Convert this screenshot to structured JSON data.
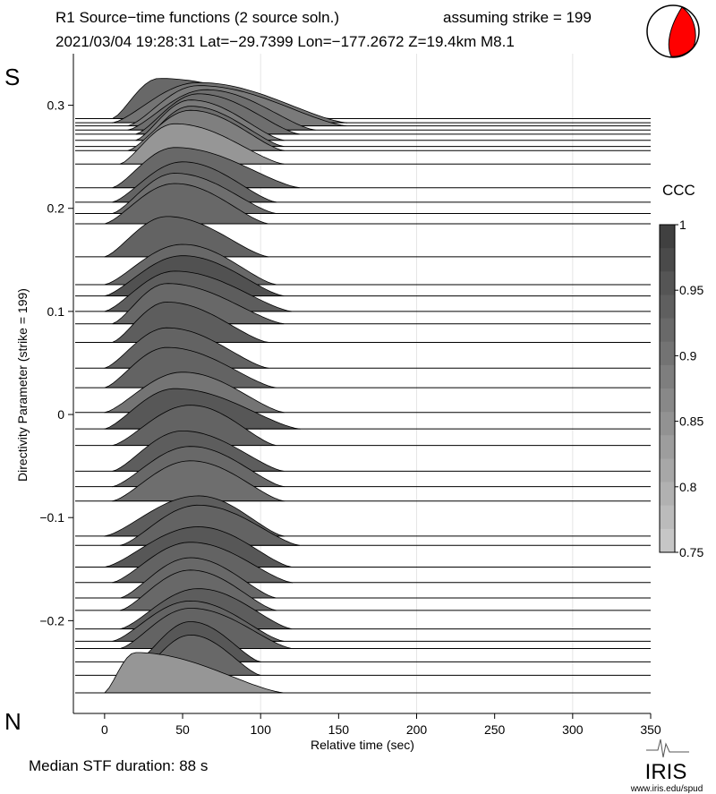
{
  "header": {
    "title": "R1 Source−time functions (2 source soln.)",
    "strike_note": "assuming strike = 199",
    "event_line": "2021/03/04 19:28:31  Lat=−29.7399 Lon=−177.2672  Z=19.4km  M8.1"
  },
  "edge_labels": {
    "top": "S",
    "bottom": "N"
  },
  "footer": {
    "median": "Median STF duration: 88 s",
    "logo_text": "IRIS",
    "logo_url": "www.iris.edu/spud"
  },
  "colors": {
    "trace_dark": "#404040",
    "trace_light": "#d0d0d0",
    "beachball": "#ff0000",
    "baseline": "#000000"
  },
  "chart_data": {
    "type": "area",
    "title": "",
    "xlabel": "Relative time (sec)",
    "ylabel": "Directivity Parameter (strike = 199)",
    "xlim": [
      -20,
      350
    ],
    "ylim": [
      -0.29,
      0.35
    ],
    "xticks": [
      0,
      50,
      100,
      150,
      200,
      250,
      300,
      350
    ],
    "yticks": [
      -0.2,
      -0.1,
      0,
      0.1,
      0.2,
      0.3
    ],
    "ytick_labels": [
      "−0.2",
      "−0.1",
      "0",
      "0.1",
      "0.2",
      "0.3"
    ],
    "vgrid": [
      100,
      200,
      300
    ],
    "colorbar": {
      "label": "CCC",
      "range": [
        0.75,
        1
      ],
      "ticks": [
        1,
        0.95,
        0.9,
        0.85,
        0.8,
        0.75
      ],
      "tick_labels": [
        "1",
        "0.95",
        "0.9",
        "0.85",
        "0.8",
        "0.75"
      ]
    },
    "traces": [
      {
        "d": 0.287,
        "start": 5,
        "end": 145,
        "peak": 35,
        "ccc": 0.93
      },
      {
        "d": 0.283,
        "start": 5,
        "end": 155,
        "peak": 60,
        "ccc": 0.91
      },
      {
        "d": 0.28,
        "start": 15,
        "end": 155,
        "peak": 60,
        "ccc": 0.9
      },
      {
        "d": 0.276,
        "start": 15,
        "end": 135,
        "peak": 65,
        "ccc": 0.92
      },
      {
        "d": 0.272,
        "start": 20,
        "end": 125,
        "peak": 60,
        "ccc": 0.92
      },
      {
        "d": 0.266,
        "start": 20,
        "end": 115,
        "peak": 55,
        "ccc": 0.9
      },
      {
        "d": 0.26,
        "start": 20,
        "end": 115,
        "peak": 55,
        "ccc": 0.92
      },
      {
        "d": 0.256,
        "start": 15,
        "end": 115,
        "peak": 55,
        "ccc": 0.89
      },
      {
        "d": 0.243,
        "start": 10,
        "end": 115,
        "peak": 45,
        "ccc": 0.85
      },
      {
        "d": 0.22,
        "start": 5,
        "end": 125,
        "peak": 45,
        "ccc": 0.93
      },
      {
        "d": 0.206,
        "start": 5,
        "end": 110,
        "peak": 50,
        "ccc": 0.94
      },
      {
        "d": 0.195,
        "start": 5,
        "end": 110,
        "peak": 45,
        "ccc": 0.92
      },
      {
        "d": 0.185,
        "start": 0,
        "end": 105,
        "peak": 45,
        "ccc": 0.93
      },
      {
        "d": 0.153,
        "start": 0,
        "end": 105,
        "peak": 40,
        "ccc": 0.94
      },
      {
        "d": 0.126,
        "start": 0,
        "end": 110,
        "peak": 50,
        "ccc": 0.93
      },
      {
        "d": 0.115,
        "start": 0,
        "end": 115,
        "peak": 50,
        "ccc": 0.97
      },
      {
        "d": 0.1,
        "start": 0,
        "end": 120,
        "peak": 45,
        "ccc": 0.95
      },
      {
        "d": 0.088,
        "start": 5,
        "end": 115,
        "peak": 40,
        "ccc": 0.93
      },
      {
        "d": 0.07,
        "start": 5,
        "end": 105,
        "peak": 40,
        "ccc": 0.95
      },
      {
        "d": 0.045,
        "start": 0,
        "end": 105,
        "peak": 40,
        "ccc": 0.94
      },
      {
        "d": 0.026,
        "start": 0,
        "end": 110,
        "peak": 40,
        "ccc": 0.94
      },
      {
        "d": 0.002,
        "start": 0,
        "end": 115,
        "peak": 50,
        "ccc": 0.91
      },
      {
        "d": -0.014,
        "start": 0,
        "end": 125,
        "peak": 45,
        "ccc": 0.96
      },
      {
        "d": -0.03,
        "start": 5,
        "end": 110,
        "peak": 55,
        "ccc": 0.94
      },
      {
        "d": -0.055,
        "start": 5,
        "end": 115,
        "peak": 50,
        "ccc": 0.95
      },
      {
        "d": -0.07,
        "start": 5,
        "end": 115,
        "peak": 55,
        "ccc": 0.93
      },
      {
        "d": -0.084,
        "start": 5,
        "end": 115,
        "peak": 55,
        "ccc": 0.92
      },
      {
        "d": -0.118,
        "start": 0,
        "end": 115,
        "peak": 60,
        "ccc": 0.95
      },
      {
        "d": -0.127,
        "start": 10,
        "end": 125,
        "peak": 60,
        "ccc": 0.94
      },
      {
        "d": -0.148,
        "start": 0,
        "end": 120,
        "peak": 60,
        "ccc": 0.96
      },
      {
        "d": -0.163,
        "start": 5,
        "end": 120,
        "peak": 55,
        "ccc": 0.94
      },
      {
        "d": -0.178,
        "start": 10,
        "end": 110,
        "peak": 55,
        "ccc": 0.93
      },
      {
        "d": -0.19,
        "start": 10,
        "end": 110,
        "peak": 55,
        "ccc": 0.93
      },
      {
        "d": -0.208,
        "start": 10,
        "end": 120,
        "peak": 60,
        "ccc": 0.95
      },
      {
        "d": -0.22,
        "start": 5,
        "end": 115,
        "peak": 55,
        "ccc": 0.94
      },
      {
        "d": -0.227,
        "start": 10,
        "end": 120,
        "peak": 55,
        "ccc": 0.94
      },
      {
        "d": -0.24,
        "start": 20,
        "end": 100,
        "peak": 55,
        "ccc": 0.96
      },
      {
        "d": -0.253,
        "start": 20,
        "end": 100,
        "peak": 55,
        "ccc": 0.93
      },
      {
        "d": -0.27,
        "start": 0,
        "end": 115,
        "peak": 20,
        "ccc": 0.85
      }
    ]
  }
}
